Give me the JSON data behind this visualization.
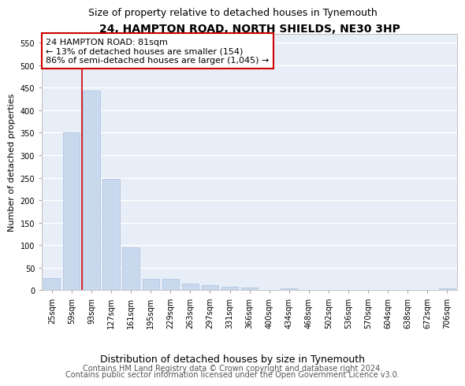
{
  "title": "24, HAMPTON ROAD, NORTH SHIELDS, NE30 3HP",
  "subtitle": "Size of property relative to detached houses in Tynemouth",
  "xlabel": "Distribution of detached houses by size in Tynemouth",
  "ylabel": "Number of detached properties",
  "categories": [
    "25sqm",
    "59sqm",
    "93sqm",
    "127sqm",
    "161sqm",
    "195sqm",
    "229sqm",
    "263sqm",
    "297sqm",
    "331sqm",
    "366sqm",
    "400sqm",
    "434sqm",
    "468sqm",
    "502sqm",
    "536sqm",
    "570sqm",
    "604sqm",
    "638sqm",
    "672sqm",
    "706sqm"
  ],
  "values": [
    27,
    350,
    443,
    248,
    95,
    25,
    25,
    14,
    11,
    8,
    5,
    0,
    4,
    0,
    0,
    0,
    0,
    0,
    0,
    0,
    4
  ],
  "bar_color": "#c8d9ee",
  "bar_edge_color": "#a8c0dc",
  "vline_x_index": 1.53,
  "vline_color": "#cc0000",
  "annotation_text": "24 HAMPTON ROAD: 81sqm\n← 13% of detached houses are smaller (154)\n86% of semi-detached houses are larger (1,045) →",
  "annotation_box_color": "#ffffff",
  "annotation_box_edge": "#cc0000",
  "ylim": [
    0,
    570
  ],
  "yticks": [
    0,
    50,
    100,
    150,
    200,
    250,
    300,
    350,
    400,
    450,
    500,
    550
  ],
  "footer1": "Contains HM Land Registry data © Crown copyright and database right 2024.",
  "footer2": "Contains public sector information licensed under the Open Government Licence v3.0.",
  "plot_bg_color": "#e8eef8",
  "fig_bg_color": "#ffffff",
  "grid_color": "#ffffff",
  "title_fontsize": 10,
  "subtitle_fontsize": 9,
  "tick_fontsize": 7,
  "ylabel_fontsize": 8,
  "xlabel_fontsize": 9,
  "footer_fontsize": 7,
  "ann_fontsize": 8
}
